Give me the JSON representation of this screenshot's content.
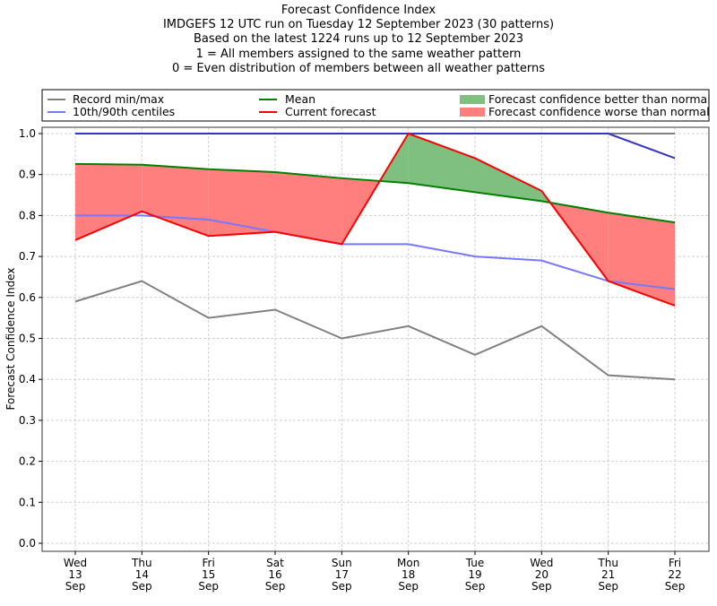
{
  "chart_data": {
    "type": "line",
    "title": "Forecast Confidence Index",
    "subtitle_lines": [
      "IMDGEFS 12 UTC run on Tuesday 12 September 2023 (30 patterns)",
      "Based on the latest 1224 runs up to 12 September 2023",
      "1 = All members assigned to the same weather pattern",
      "0 = Even distribution of members between all weather patterns"
    ],
    "xlabel": "",
    "ylabel": "Forecast Confidence Index",
    "ylim": [
      0.0,
      1.0
    ],
    "yticks": [
      "0.0",
      "0.1",
      "0.2",
      "0.3",
      "0.4",
      "0.5",
      "0.6",
      "0.7",
      "0.8",
      "0.9",
      "1.0"
    ],
    "grid": true,
    "legend_position": "top",
    "categories": [
      [
        "Wed",
        "13",
        "Sep"
      ],
      [
        "Thu",
        "14",
        "Sep"
      ],
      [
        "Fri",
        "15",
        "Sep"
      ],
      [
        "Sat",
        "16",
        "Sep"
      ],
      [
        "Sun",
        "17",
        "Sep"
      ],
      [
        "Mon",
        "18",
        "Sep"
      ],
      [
        "Tue",
        "19",
        "Sep"
      ],
      [
        "Wed",
        "20",
        "Sep"
      ],
      [
        "Thu",
        "21",
        "Sep"
      ],
      [
        "Fri",
        "22",
        "Sep"
      ]
    ],
    "series": [
      {
        "name": "Record min/max",
        "key": "record_max",
        "color": "#808080",
        "values": [
          1.0,
          1.0,
          1.0,
          1.0,
          1.0,
          1.0,
          1.0,
          1.0,
          1.0,
          1.0
        ]
      },
      {
        "name": "Record min/max",
        "key": "record_min",
        "color": "#808080",
        "values": [
          0.59,
          0.64,
          0.55,
          0.57,
          0.5,
          0.53,
          0.46,
          0.53,
          0.41,
          0.4
        ]
      },
      {
        "name": "10th/90th centiles",
        "key": "p90",
        "color": "#3333cc",
        "values": [
          1.0,
          1.0,
          1.0,
          1.0,
          1.0,
          1.0,
          1.0,
          1.0,
          1.0,
          0.94
        ]
      },
      {
        "name": "10th/90th centiles",
        "key": "p10",
        "color": "#7777ff",
        "values": [
          0.8,
          0.8,
          0.79,
          0.76,
          0.73,
          0.73,
          0.7,
          0.69,
          0.64,
          0.62
        ]
      },
      {
        "name": "Mean",
        "key": "mean",
        "color": "#008000",
        "values": [
          0.926,
          0.924,
          0.913,
          0.906,
          0.891,
          0.879,
          0.857,
          0.835,
          0.807,
          0.783
        ]
      },
      {
        "name": "Current forecast",
        "key": "current",
        "color": "#ff0000",
        "values": [
          0.74,
          0.81,
          0.75,
          0.76,
          0.73,
          1.0,
          0.94,
          0.86,
          0.64,
          0.58
        ]
      }
    ],
    "fills": {
      "better": {
        "name": "Forecast confidence better than normal",
        "color": "#7fbf7f"
      },
      "worse": {
        "name": "Forecast confidence worse than normal",
        "color": "#ff7f7f"
      }
    },
    "legend": [
      {
        "label": "Record min/max",
        "kind": "line",
        "color": "#808080"
      },
      {
        "label": "10th/90th centiles",
        "kind": "line",
        "color": "#7777ff"
      },
      {
        "label": "Mean",
        "kind": "line",
        "color": "#008000"
      },
      {
        "label": "Current forecast",
        "kind": "line",
        "color": "#ff0000"
      },
      {
        "label": "Forecast confidence better than normal",
        "kind": "patch",
        "color": "#7fbf7f"
      },
      {
        "label": "Forecast confidence worse than normal",
        "kind": "patch",
        "color": "#ff7f7f"
      }
    ]
  }
}
